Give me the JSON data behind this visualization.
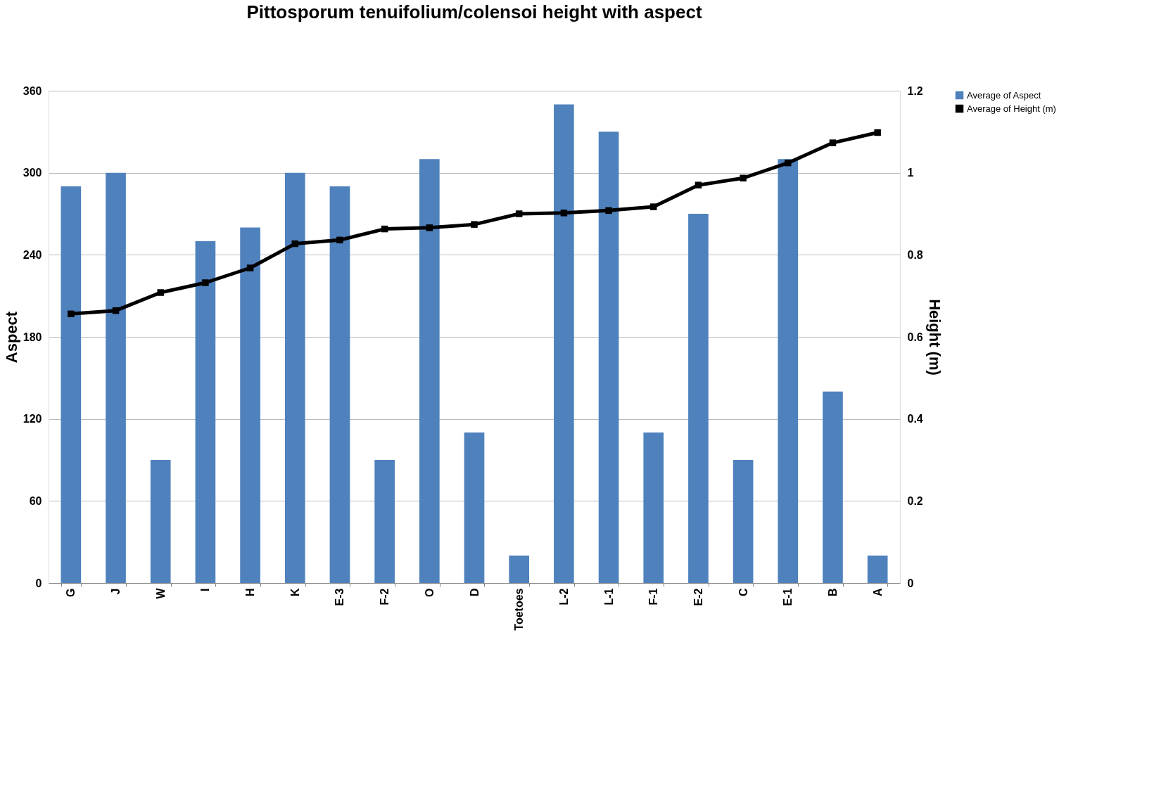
{
  "chart_data": {
    "type": "bar",
    "title": "Pittosporum tenuifolium/colensoi height with aspect",
    "ylabel": "Aspect",
    "y2label": "Height (m)",
    "categories": [
      "G",
      "J",
      "W",
      "I",
      "H",
      "K",
      "E-3",
      "F-2",
      "O",
      "D",
      "Toetoes",
      "L-2",
      "L-1",
      "F-1",
      "E-2",
      "C",
      "E-1",
      "B",
      "A"
    ],
    "series": [
      {
        "name": "Average of Aspect",
        "color": "#4f81bd",
        "values": [
          290,
          300,
          90,
          250,
          260,
          300,
          290,
          90,
          310,
          110,
          20,
          350,
          330,
          110,
          270,
          90,
          310,
          140,
          20
        ]
      },
      {
        "name": "Average of Height (m)",
        "type": "line",
        "axis": "y2",
        "color": "#000000",
        "marker": "square",
        "line_style": "solid",
        "values": [
          0.656,
          0.664,
          0.708,
          0.732,
          0.768,
          0.827,
          0.836,
          0.863,
          0.866,
          0.874,
          0.9,
          0.902,
          0.908,
          0.917,
          0.97,
          0.987,
          1.024,
          1.073,
          1.098
        ]
      }
    ],
    "ylim": [
      0,
      360
    ],
    "yticks": [
      0,
      60,
      120,
      180,
      240,
      300,
      360
    ],
    "y2lim": [
      0,
      1.2
    ],
    "y2ticks": [
      {
        "value": 0,
        "label": "0"
      },
      0.2,
      0.4,
      0.6,
      0.8,
      {
        "value": 1,
        "label": "1"
      },
      1.2
    ],
    "grid": "y",
    "legend": "right"
  }
}
